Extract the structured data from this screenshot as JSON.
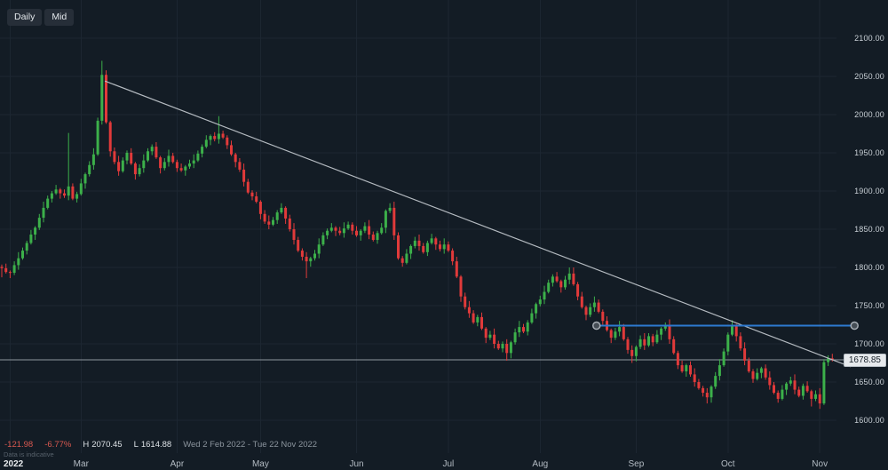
{
  "toolbar": {
    "timeframe_label": "Daily",
    "price_type_label": "Mid"
  },
  "status_bar": {
    "change": "-121.98",
    "change_pct": "-6.77%",
    "high_label": "H",
    "high_value": "2070.45",
    "low_label": "L",
    "low_value": "1614.88",
    "date_range": "Wed 2 Feb 2022 - Tue 22 Nov 2022",
    "disclaimer": "Data is indicative"
  },
  "price_axis": {
    "ticks": [
      "2100.00",
      "2050.00",
      "2000.00",
      "1950.00",
      "1900.00",
      "1850.00",
      "1800.00",
      "1750.00",
      "1700.00",
      "1650.00",
      "1600.00"
    ],
    "current_price_label": "1678.85"
  },
  "time_axis": {
    "ticks": [
      {
        "label": "2022",
        "day": 2,
        "year": true
      },
      {
        "label": "Mar",
        "day": 19
      },
      {
        "label": "Apr",
        "day": 42
      },
      {
        "label": "May",
        "day": 62
      },
      {
        "label": "Jun",
        "day": 85
      },
      {
        "label": "Jul",
        "day": 107
      },
      {
        "label": "Aug",
        "day": 129
      },
      {
        "label": "Sep",
        "day": 152
      },
      {
        "label": "Oct",
        "day": 174
      },
      {
        "label": "Nov",
        "day": 196
      }
    ]
  },
  "colors": {
    "background": "#131c25",
    "grid": "#1c2631",
    "up_candle": "#3cb04a",
    "down_candle": "#e13a3a",
    "trendline": "#b4bac0",
    "horizontal_line": "#2e7ad0",
    "handle_fill": "#454d55",
    "handle_ring": "#a6adb4",
    "current_price_line": "#8f979e",
    "axis_text": "#c9d0d6"
  },
  "chart_data": {
    "type": "candlestick",
    "title": "Daily Mid candlestick price chart, Feb 2 2022 - Nov 22 2022",
    "period_high": 2070.45,
    "period_low": 1614.88,
    "period_change": -121.98,
    "period_change_pct": -6.77,
    "current_price": 1678.85,
    "ylim": [
      1600,
      2100
    ],
    "grid_step": 50,
    "first_open": 1800.83,
    "closes": [
      1799,
      1794,
      1793,
      1803,
      1812,
      1822,
      1832,
      1843,
      1852,
      1865,
      1878,
      1890,
      1897,
      1902,
      1897,
      1894,
      1906,
      1890,
      1896,
      1910,
      1922,
      1934,
      1948,
      1992,
      2052,
      1990,
      1952,
      1938,
      1926,
      1940,
      1950,
      1936,
      1922,
      1930,
      1940,
      1952,
      1958,
      1944,
      1930,
      1938,
      1946,
      1938,
      1930,
      1927,
      1932,
      1936,
      1940,
      1949,
      1958,
      1967,
      1972,
      1968,
      1975,
      1970,
      1960,
      1948,
      1938,
      1928,
      1912,
      1898,
      1893,
      1886,
      1870,
      1860,
      1856,
      1862,
      1872,
      1878,
      1864,
      1850,
      1836,
      1822,
      1814,
      1808,
      1812,
      1818,
      1830,
      1842,
      1848,
      1852,
      1848,
      1845,
      1851,
      1856,
      1848,
      1842,
      1848,
      1854,
      1843,
      1836,
      1845,
      1852,
      1874,
      1878,
      1842,
      1812,
      1806,
      1818,
      1828,
      1835,
      1828,
      1820,
      1832,
      1838,
      1830,
      1824,
      1830,
      1822,
      1808,
      1788,
      1762,
      1748,
      1740,
      1728,
      1735,
      1720,
      1708,
      1712,
      1700,
      1694,
      1700,
      1688,
      1702,
      1715,
      1722,
      1716,
      1728,
      1740,
      1752,
      1758,
      1768,
      1780,
      1788,
      1782,
      1774,
      1784,
      1792,
      1778,
      1762,
      1748,
      1738,
      1748,
      1754,
      1742,
      1730,
      1718,
      1708,
      1716,
      1722,
      1706,
      1692,
      1684,
      1696,
      1706,
      1698,
      1710,
      1702,
      1712,
      1720,
      1724,
      1706,
      1688,
      1672,
      1664,
      1672,
      1660,
      1650,
      1642,
      1636,
      1630,
      1644,
      1658,
      1672,
      1690,
      1712,
      1724,
      1710,
      1694,
      1678,
      1664,
      1654,
      1662,
      1668,
      1656,
      1646,
      1636,
      1628,
      1640,
      1648,
      1652,
      1640,
      1632,
      1645,
      1638,
      1628,
      1634,
      1622,
      1676,
      1681,
      1678.85
    ],
    "wick_highs": {
      "16": 1976,
      "24": 2070.45,
      "52": 1998,
      "93": 1884,
      "137": 1800,
      "159": 1728,
      "175": 1731,
      "198": 1685
    },
    "wick_lows": {
      "0": 1787,
      "73": 1786,
      "121": 1678,
      "151": 1675,
      "169": 1622,
      "194": 1618,
      "196": 1614.88
    },
    "drawings": {
      "trendline": {
        "x1_day": 24.7,
        "y1_price": 2044,
        "x2_day": 203.4,
        "y2_price": 1670
      },
      "horizontal_line": {
        "price": 1723.8,
        "x1_day": 142.5,
        "x2_day": 204.3
      }
    }
  }
}
